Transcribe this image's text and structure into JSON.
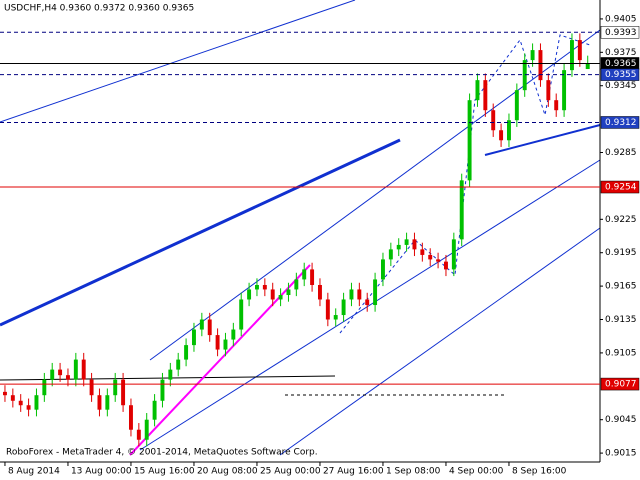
{
  "chart_data": {
    "type": "candlestick",
    "title": "USDCHF,H4  0.9360 0.9372 0.9360 0.9365",
    "footer": "RoboForex - MetaTrader 4, © 2001-2014, MetaQuotes Software Corp.",
    "up_color": "#00c000",
    "down_color": "#e00000",
    "open": [
      0.907,
      0.9067,
      0.9062,
      0.9058,
      0.9054,
      0.9067,
      0.9081,
      0.909,
      0.9085,
      0.9081,
      0.9099,
      0.9081,
      0.9067,
      0.9054,
      0.9067,
      0.9081,
      0.9058,
      0.9036,
      0.9027,
      0.9045,
      0.9062,
      0.9081,
      0.909,
      0.9099,
      0.9112,
      0.9126,
      0.9135,
      0.9121,
      0.9108,
      0.9117,
      0.9126,
      0.9153,
      0.9162,
      0.9166,
      0.9162,
      0.9153,
      0.9157,
      0.9162,
      0.9171,
      0.918,
      0.9166,
      0.9153,
      0.9135,
      0.9139,
      0.9153,
      0.9162,
      0.9153,
      0.9148,
      0.9171,
      0.9189,
      0.9198,
      0.9202,
      0.9207,
      0.9198,
      0.9193,
      0.9189,
      0.9187,
      0.918,
      0.9207,
      0.926,
      0.9332,
      0.935,
      0.9323,
      0.9305,
      0.9296,
      0.9314,
      0.9341,
      0.9368,
      0.9377,
      0.935,
      0.9332,
      0.9323,
      0.9359,
      0.9386,
      0.936
    ],
    "high": [
      0.9076,
      0.9073,
      0.9068,
      0.9064,
      0.9073,
      0.9087,
      0.9096,
      0.9096,
      0.9091,
      0.9105,
      0.9105,
      0.9087,
      0.9073,
      0.9073,
      0.9087,
      0.9087,
      0.9064,
      0.9042,
      0.9051,
      0.9068,
      0.9087,
      0.9096,
      0.9105,
      0.9118,
      0.9132,
      0.9141,
      0.9141,
      0.9127,
      0.9123,
      0.9132,
      0.9159,
      0.9168,
      0.9172,
      0.9172,
      0.9168,
      0.9163,
      0.9168,
      0.9177,
      0.9186,
      0.9186,
      0.9172,
      0.9159,
      0.9145,
      0.9159,
      0.9168,
      0.9168,
      0.9159,
      0.9177,
      0.9195,
      0.9204,
      0.9208,
      0.9213,
      0.9213,
      0.9204,
      0.9199,
      0.9195,
      0.9193,
      0.9213,
      0.9266,
      0.9338,
      0.9356,
      0.9356,
      0.9329,
      0.9311,
      0.932,
      0.9347,
      0.9374,
      0.9383,
      0.9383,
      0.9356,
      0.9338,
      0.9365,
      0.9392,
      0.9392,
      0.9372
    ],
    "low": [
      0.9061,
      0.9056,
      0.9052,
      0.9048,
      0.9048,
      0.9061,
      0.9075,
      0.9079,
      0.9075,
      0.9075,
      0.9075,
      0.9061,
      0.9048,
      0.9048,
      0.9061,
      0.9052,
      0.903,
      0.9021,
      0.9021,
      0.9039,
      0.9056,
      0.9075,
      0.9084,
      0.9093,
      0.9106,
      0.912,
      0.9115,
      0.9102,
      0.9102,
      0.9111,
      0.912,
      0.9147,
      0.9156,
      0.9156,
      0.9147,
      0.9147,
      0.9151,
      0.9156,
      0.9165,
      0.916,
      0.9147,
      0.9129,
      0.9129,
      0.9133,
      0.9147,
      0.9147,
      0.9142,
      0.9142,
      0.9165,
      0.9183,
      0.9192,
      0.9196,
      0.9192,
      0.9187,
      0.9183,
      0.9181,
      0.9174,
      0.9174,
      0.9201,
      0.9254,
      0.9326,
      0.9317,
      0.9299,
      0.929,
      0.929,
      0.9308,
      0.9335,
      0.9362,
      0.9344,
      0.9326,
      0.9317,
      0.9317,
      0.9353,
      0.9362,
      0.936
    ],
    "close": [
      0.9067,
      0.9062,
      0.9058,
      0.9054,
      0.9067,
      0.9081,
      0.909,
      0.9085,
      0.9081,
      0.9099,
      0.9081,
      0.9067,
      0.9054,
      0.9067,
      0.9081,
      0.9058,
      0.9036,
      0.9027,
      0.9045,
      0.9062,
      0.9081,
      0.909,
      0.9099,
      0.9112,
      0.9126,
      0.9135,
      0.9121,
      0.9108,
      0.9117,
      0.9126,
      0.9153,
      0.9162,
      0.9166,
      0.9162,
      0.9153,
      0.9157,
      0.9162,
      0.9171,
      0.918,
      0.9166,
      0.9153,
      0.9135,
      0.9139,
      0.9153,
      0.9162,
      0.9153,
      0.9148,
      0.9171,
      0.9189,
      0.9198,
      0.9202,
      0.9207,
      0.9198,
      0.9193,
      0.9189,
      0.9187,
      0.918,
      0.9207,
      0.926,
      0.9332,
      0.935,
      0.9323,
      0.9305,
      0.9296,
      0.9314,
      0.9341,
      0.9368,
      0.9377,
      0.935,
      0.9332,
      0.9323,
      0.9359,
      0.9386,
      0.9368,
      0.9365
    ],
    "xlim": [
      -0.63,
      75.56
    ],
    "xticks": [
      {
        "value": 0,
        "label": "8 Aug 2014"
      },
      {
        "value": 8,
        "label": "13 Aug 00:00"
      },
      {
        "value": 16,
        "label": "15 Aug 16:00"
      },
      {
        "value": 24,
        "label": "20 Aug 08:00"
      },
      {
        "value": 32,
        "label": "25 Aug 00:00"
      },
      {
        "value": 40,
        "label": "27 Aug 16:00"
      },
      {
        "value": 48,
        "label": "1 Sep 08:00"
      },
      {
        "value": 56,
        "label": "4 Sep 00:00"
      },
      {
        "value": 64,
        "label": "8 Sep 16:00"
      }
    ],
    "ylim": [
      0.9007,
      0.9422
    ],
    "yticks": [
      0.9405,
      0.9375,
      0.9345,
      0.9285,
      0.9225,
      0.9195,
      0.9165,
      0.9135,
      0.9105,
      0.9045,
      0.9015
    ],
    "levels": [
      {
        "value": 0.9393,
        "color": "#000080",
        "dash": true,
        "label_bg": "#ffffff",
        "label_fg": "#000000"
      },
      {
        "value": 0.9365,
        "color": "#000000",
        "dash": false,
        "label_bg": "#000000",
        "label_fg": "#ffffff"
      },
      {
        "value": 0.9355,
        "color": "#000080",
        "dash": true,
        "label_bg": "#2040c0",
        "label_fg": "#ffffff"
      },
      {
        "value": 0.9312,
        "color": "#000080",
        "dash": true,
        "label_bg": "#2040c0",
        "label_fg": "#ffffff"
      },
      {
        "value": 0.9254,
        "color": "#e00000",
        "dash": false,
        "label_bg": "#e00000",
        "label_fg": "#ffffff"
      },
      {
        "value": 0.9077,
        "color": "#e00000",
        "dash": false,
        "label_bg": "#e00000",
        "label_fg": "#ffffff"
      }
    ]
  }
}
